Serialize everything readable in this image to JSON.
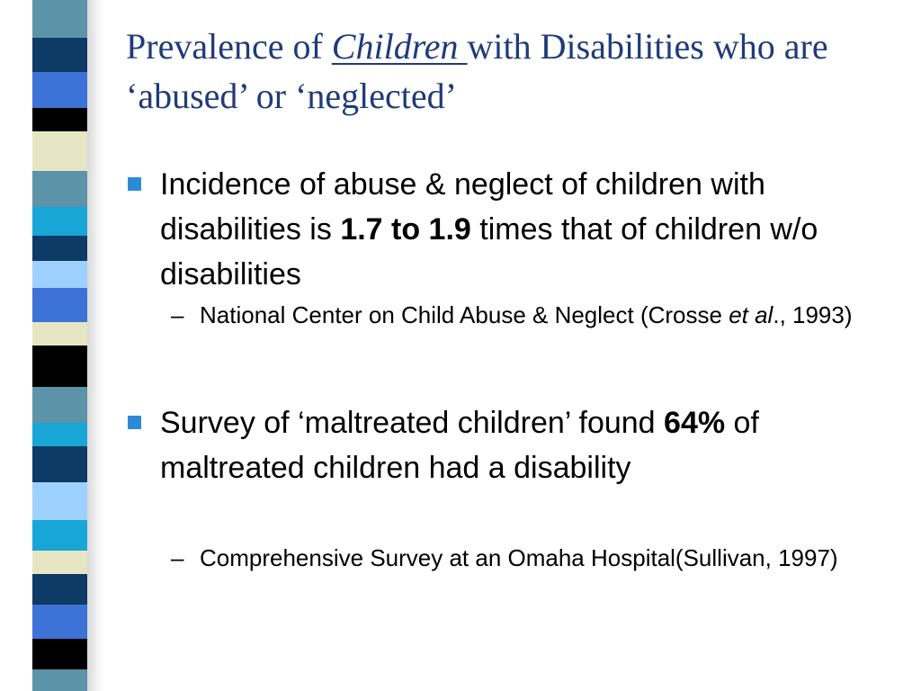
{
  "decoration": {
    "stripe_colors": [
      "#5d93a8",
      "#0e3a66",
      "#3d72d6",
      "#000000",
      "#e6e6c4",
      "#5d93a8",
      "#18a6d6",
      "#0e3a66",
      "#9fd1ff",
      "#3d72d6",
      "#e6e6c4",
      "#000000",
      "#5d93a8",
      "#18a6d6",
      "#0e3a66",
      "#9fd1ff",
      "#18a6d6",
      "#e6e6c4",
      "#0e3a66",
      "#3d72d6",
      "#000000",
      "#5d93a8"
    ]
  },
  "slide": {
    "title_part1": "Prevalence of ",
    "title_underlined": "Children ",
    "title_part2": "with Disabilities who are ‘abused’ or ‘neglected’",
    "bullets": [
      {
        "pre": "Incidence of abuse & neglect of children with disabilities is ",
        "bold": "1.7 to 1.9",
        "post": " times that of children w/o disabilities",
        "sub_pre": "National Center on Child Abuse & Neglect (Crosse ",
        "sub_italic": "et al",
        "sub_post": "., 1993)"
      },
      {
        "pre": "Survey of ‘maltreated children’ found ",
        "bold": "64%",
        "post": " of maltreated children had a disability",
        "sub_text": "Comprehensive Survey at an Omaha Hospital(Sullivan, 1997)"
      }
    ],
    "dash": "–"
  }
}
